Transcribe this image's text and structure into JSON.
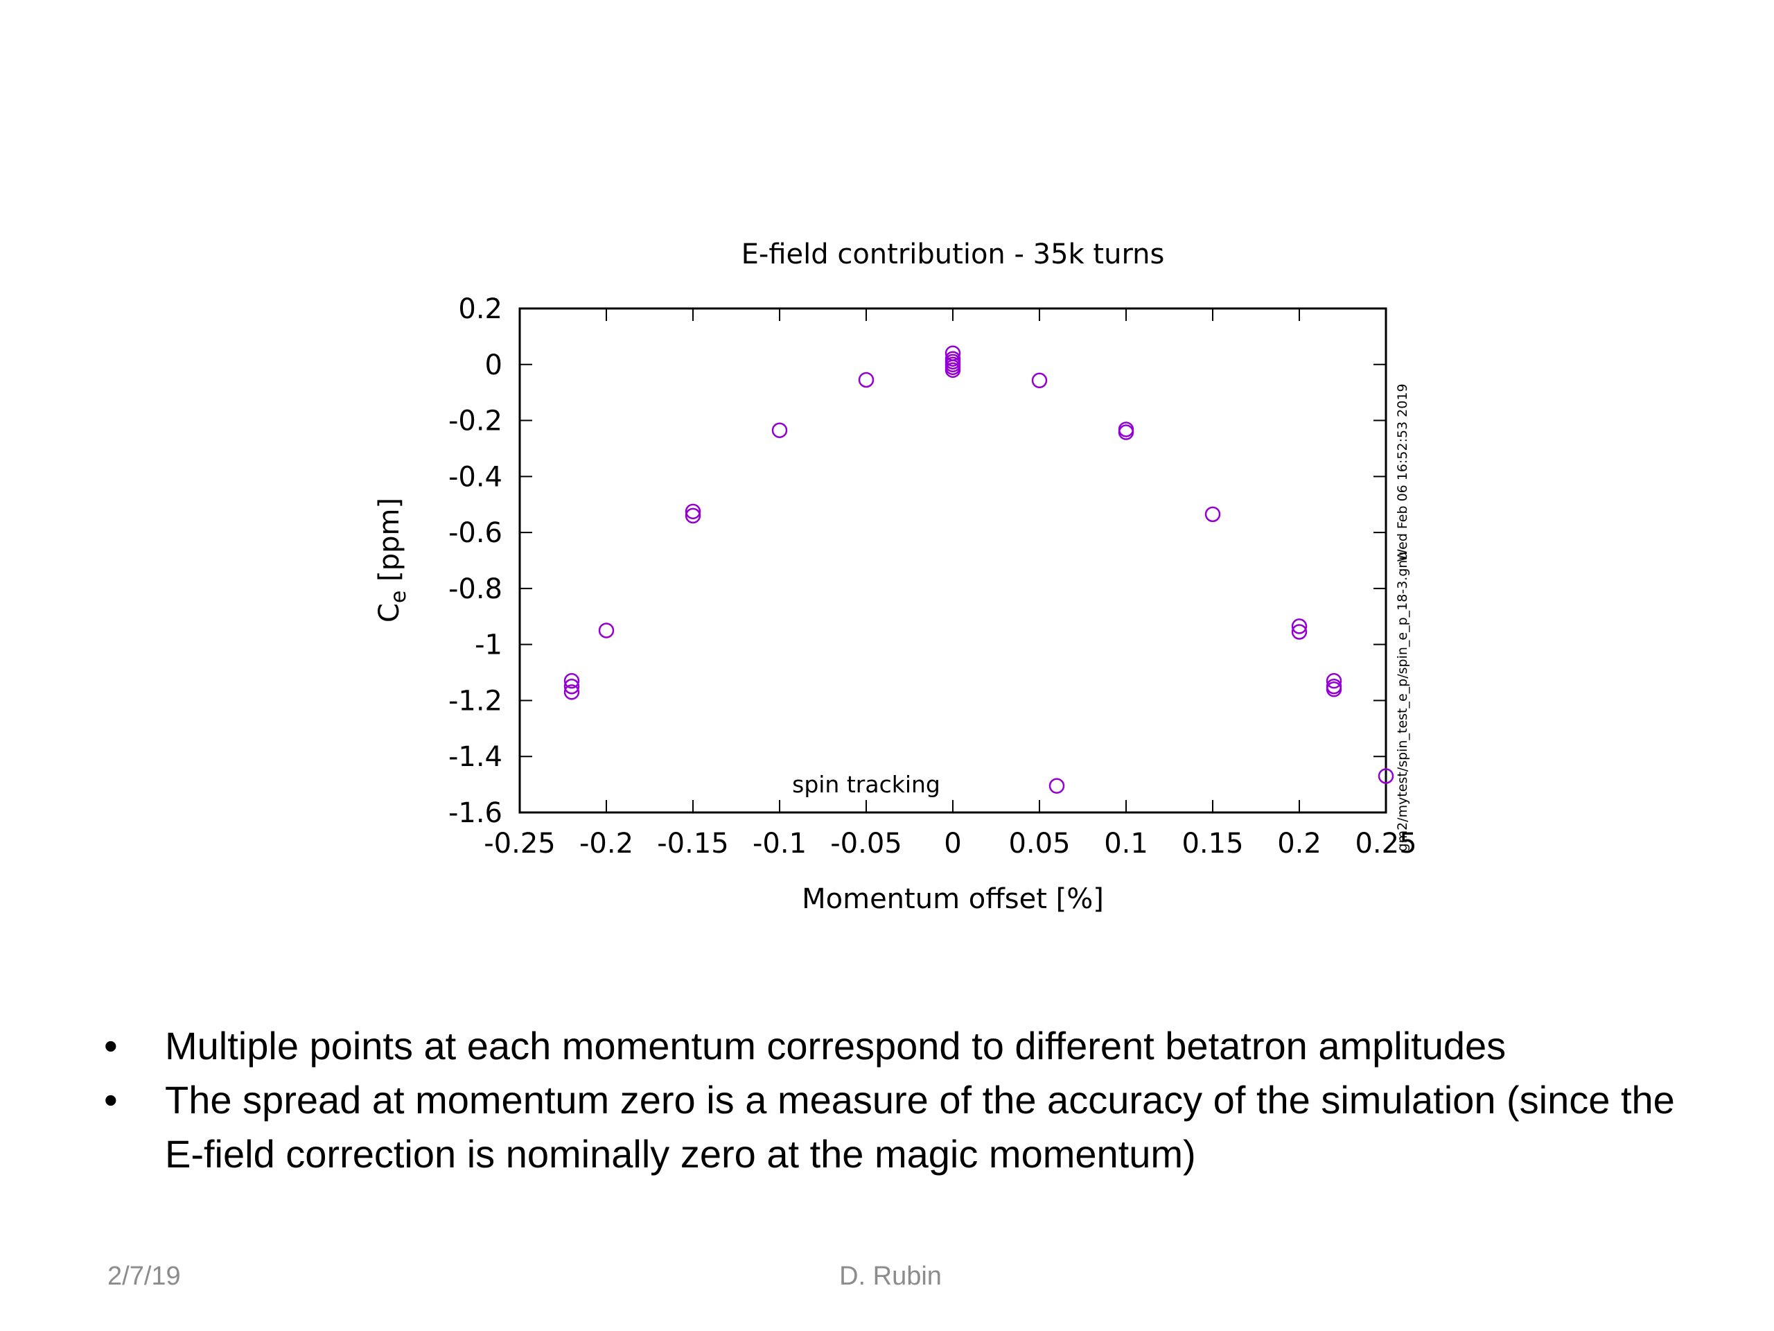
{
  "chart_data": {
    "type": "scatter",
    "title": "E-field contribution - 35k turns",
    "xlabel": "Momentum offset [%]",
    "ylabel_main": "C",
    "ylabel_sub": "e",
    "ylabel_unit": " [ppm]",
    "xlim": [
      -0.25,
      0.25
    ],
    "ylim": [
      -1.6,
      0.2
    ],
    "xticks": [
      "-0.25",
      "-0.2",
      "-0.15",
      "-0.1",
      "-0.05",
      "0",
      "0.05",
      "0.1",
      "0.15",
      "0.2",
      "0.25"
    ],
    "xtick_values": [
      -0.25,
      -0.2,
      -0.15,
      -0.1,
      -0.05,
      0,
      0.05,
      0.1,
      0.15,
      0.2,
      0.25
    ],
    "yticks": [
      "0.2",
      "0",
      "-0.2",
      "-0.4",
      "-0.6",
      "-0.8",
      "-1",
      "-1.2",
      "-1.4",
      "-1.6"
    ],
    "ytick_values": [
      0.2,
      0,
      -0.2,
      -0.4,
      -0.6,
      -0.8,
      -1.0,
      -1.2,
      -1.4,
      -1.6
    ],
    "grid": false,
    "series": [
      {
        "name": "spin tracking",
        "color": "#9400d3",
        "marker": "circle-open",
        "points": [
          {
            "x": -0.22,
            "y": -1.13
          },
          {
            "x": -0.22,
            "y": -1.15
          },
          {
            "x": -0.22,
            "y": -1.17
          },
          {
            "x": -0.2,
            "y": -0.95
          },
          {
            "x": -0.15,
            "y": -0.525
          },
          {
            "x": -0.15,
            "y": -0.54
          },
          {
            "x": -0.1,
            "y": -0.235
          },
          {
            "x": -0.05,
            "y": -0.055
          },
          {
            "x": 0,
            "y": 0.04
          },
          {
            "x": 0,
            "y": 0.02
          },
          {
            "x": 0,
            "y": 0.01
          },
          {
            "x": 0,
            "y": 0.0
          },
          {
            "x": 0,
            "y": -0.01
          },
          {
            "x": 0,
            "y": -0.02
          },
          {
            "x": 0.05,
            "y": -0.057
          },
          {
            "x": 0.06,
            "y": -1.505
          },
          {
            "x": 0.1,
            "y": -0.232
          },
          {
            "x": 0.1,
            "y": -0.242
          },
          {
            "x": 0.15,
            "y": -0.535
          },
          {
            "x": 0.2,
            "y": -0.935
          },
          {
            "x": 0.2,
            "y": -0.955
          },
          {
            "x": 0.22,
            "y": -1.13
          },
          {
            "x": 0.22,
            "y": -1.15
          },
          {
            "x": 0.22,
            "y": -1.16
          },
          {
            "x": 0.25,
            "y": -1.47
          }
        ]
      }
    ],
    "legend": "bottom-center",
    "timestamp": "Wed Feb 06 16:52:53 2019",
    "script_path": "gm2/mytest/spin_test_e_p/spin_e_p_18-3.gnu"
  },
  "bullets": [
    {
      "marker": "•",
      "text": "Multiple points at each momentum correspond to different betatron amplitudes"
    },
    {
      "marker": "•",
      "text": "The spread at momentum zero is a measure of the accuracy of the simulation (since the E-field correction is nominally zero at the magic momentum)"
    }
  ],
  "footer": {
    "date": "2/7/19",
    "author": "D. Rubin"
  }
}
